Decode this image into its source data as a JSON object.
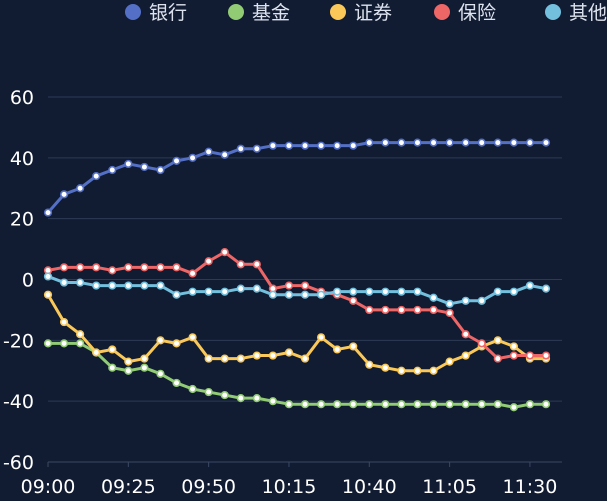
{
  "chart_data": {
    "type": "line",
    "title": "",
    "xlabel": "",
    "ylabel": "",
    "ylim": [
      -60,
      60
    ],
    "yticks": [
      -60,
      -40,
      -20,
      0,
      20,
      40,
      60
    ],
    "grid": true,
    "legend_position": "top-right",
    "x": [
      "09:00",
      "09:05",
      "09:10",
      "09:15",
      "09:20",
      "09:25",
      "09:30",
      "09:35",
      "09:40",
      "09:45",
      "09:50",
      "09:55",
      "10:00",
      "10:05",
      "10:10",
      "10:15",
      "10:20",
      "10:25",
      "10:30",
      "10:35",
      "10:40",
      "10:45",
      "10:50",
      "10:55",
      "11:00",
      "11:05",
      "11:10",
      "11:15",
      "11:20",
      "11:25",
      "11:30",
      "11:35"
    ],
    "xtick_labels": [
      "09:00",
      "09:25",
      "09:50",
      "10:15",
      "10:40",
      "11:05",
      "11:30"
    ],
    "series": [
      {
        "name": "银行",
        "color": "#5470c6",
        "values": [
          22,
          28,
          30,
          34,
          36,
          38,
          37,
          36,
          39,
          40,
          42,
          41,
          43,
          43,
          44,
          44,
          44,
          44,
          44,
          44,
          45,
          45,
          45,
          45,
          45,
          45,
          45,
          45,
          45,
          45,
          45,
          45
        ]
      },
      {
        "name": "基金",
        "color": "#91cc75",
        "values": [
          -21,
          -21,
          -21,
          -24,
          -29,
          -30,
          -29,
          -31,
          -34,
          -36,
          -37,
          -38,
          -39,
          -39,
          -40,
          -41,
          -41,
          -41,
          -41,
          -41,
          -41,
          -41,
          -41,
          -41,
          -41,
          -41,
          -41,
          -41,
          -41,
          -42,
          -41,
          -41
        ]
      },
      {
        "name": "证券",
        "color": "#fac858",
        "values": [
          -5,
          -14,
          -18,
          -24,
          -23,
          -27,
          -26,
          -20,
          -21,
          -19,
          -26,
          -26,
          -26,
          -25,
          -25,
          -24,
          -26,
          -19,
          -23,
          -22,
          -28,
          -29,
          -30,
          -30,
          -30,
          -27,
          -25,
          -22,
          -20,
          -22,
          -26,
          -26
        ]
      },
      {
        "name": "保险",
        "color": "#ee6666",
        "values": [
          3,
          4,
          4,
          4,
          3,
          4,
          4,
          4,
          4,
          2,
          6,
          9,
          5,
          5,
          -3,
          -2,
          -2,
          -4,
          -5,
          -7,
          -10,
          -10,
          -10,
          -10,
          -10,
          -11,
          -18,
          -21,
          -26,
          -25,
          -25,
          -25
        ]
      },
      {
        "name": "其他",
        "color": "#73c0de",
        "values": [
          1,
          -1,
          -1,
          -2,
          -2,
          -2,
          -2,
          -2,
          -5,
          -4,
          -4,
          -4,
          -3,
          -3,
          -5,
          -5,
          -5,
          -5,
          -4,
          -4,
          -4,
          -4,
          -4,
          -4,
          -6,
          -8,
          -7,
          -7,
          -4,
          -4,
          -2,
          -3
        ]
      }
    ],
    "colors": {
      "background": "#111c32",
      "grid": "#2c3a55",
      "axis": "#3a4863",
      "tick_text": "#ffffff",
      "legend_text": "#dde3ee"
    }
  }
}
